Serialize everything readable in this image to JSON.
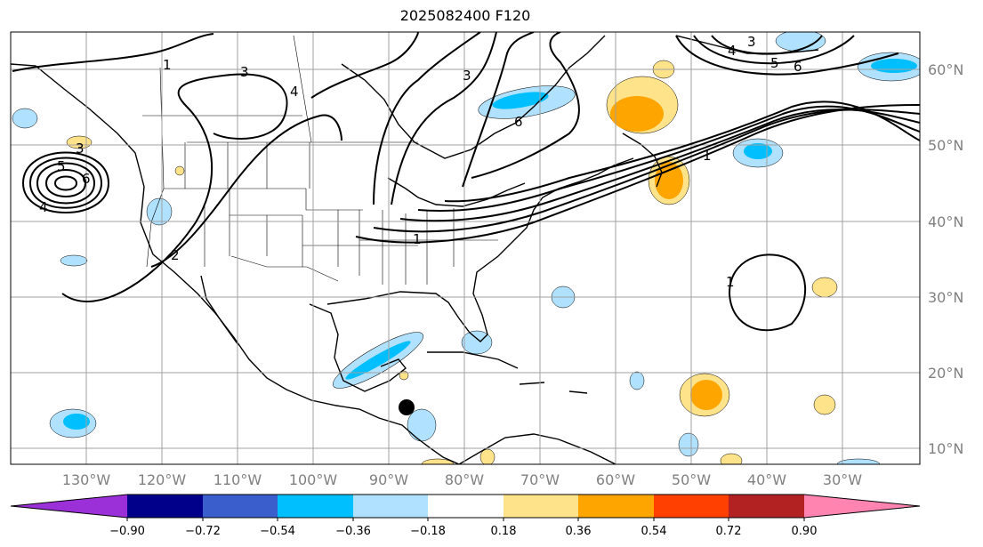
{
  "title": "2025082400 F120",
  "map": {
    "lon_labels": [
      "130°W",
      "120°W",
      "110°W",
      "100°W",
      "90°W",
      "80°W",
      "70°W",
      "60°W",
      "50°W",
      "40°W",
      "30°W"
    ],
    "lat_labels": [
      "60°N",
      "50°N",
      "40°N",
      "30°N",
      "20°N",
      "10°N"
    ],
    "contour_labels": [
      "1",
      "2",
      "3",
      "4",
      "5",
      "6"
    ]
  },
  "colorbar": {
    "ticks": [
      "−0.90",
      "−0.72",
      "−0.54",
      "−0.36",
      "−0.18",
      "0.18",
      "0.36",
      "0.54",
      "0.72",
      "0.90"
    ],
    "colors": [
      "#9b30d9",
      "#00008b",
      "#3a5fcd",
      "#00bfff",
      "#b0e2ff",
      "#ffffff",
      "#ffe38a",
      "#ffa500",
      "#ff4000",
      "#b22222",
      "#ff85b0"
    ]
  },
  "colors": {
    "neg_light": "#b0e2ff",
    "neg_mid": "#00bfff",
    "pos_light": "#ffe38a",
    "pos_mid": "#ffa500",
    "grid": "#a0a0a0"
  }
}
